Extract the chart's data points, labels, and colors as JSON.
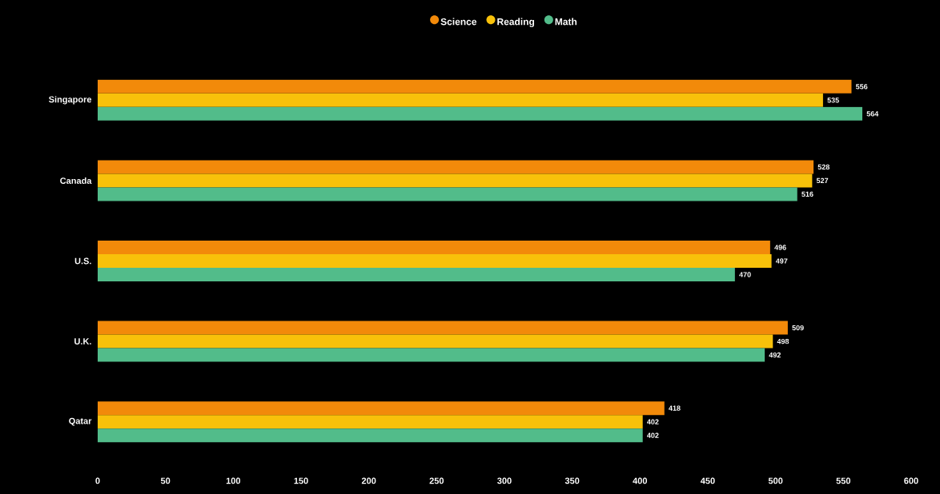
{
  "chart_data": {
    "type": "bar",
    "orientation": "horizontal",
    "categories": [
      "Singapore",
      "Canada",
      "U.S.",
      "U.K.",
      "Qatar"
    ],
    "series": [
      {
        "name": "Science",
        "color": "#f28a0a",
        "values": [
          556,
          528,
          496,
          509,
          418
        ]
      },
      {
        "name": "Reading",
        "color": "#f8c10a",
        "values": [
          535,
          527,
          497,
          498,
          402
        ]
      },
      {
        "name": "Math",
        "color": "#52bc8a",
        "values": [
          564,
          516,
          470,
          492,
          402
        ]
      }
    ],
    "xlim": [
      0,
      600
    ],
    "xticks": [
      0,
      50,
      100,
      150,
      200,
      250,
      300,
      350,
      400,
      450,
      500,
      550,
      600
    ],
    "data_labels": true,
    "legend": "top",
    "grid": false
  }
}
